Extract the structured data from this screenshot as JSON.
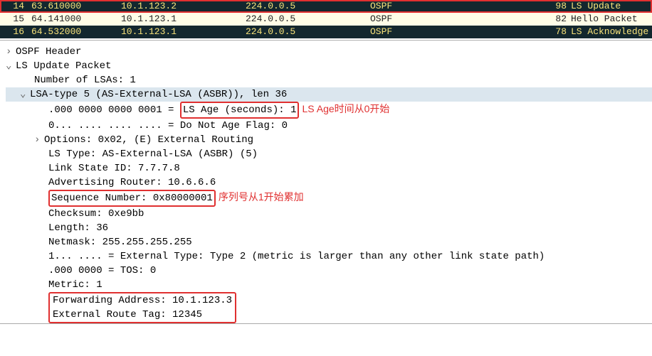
{
  "colors": {
    "highlight": "#e03030",
    "dark_bg": "#13272e",
    "dark_fg": "#f7e27a",
    "light_bg": "#fffde7"
  },
  "packet_list": {
    "rows": [
      {
        "no": "14",
        "time": "63.610000",
        "src": "10.1.123.2",
        "dst": "224.0.0.5",
        "proto": "OSPF",
        "len": "98",
        "info": "LS Update",
        "style": "dark",
        "hl": true
      },
      {
        "no": "15",
        "time": "64.141000",
        "src": "10.1.123.1",
        "dst": "224.0.0.5",
        "proto": "OSPF",
        "len": "82",
        "info": "Hello Packet",
        "style": "light",
        "hl": false
      },
      {
        "no": "16",
        "time": "64.532000",
        "src": "10.1.123.1",
        "dst": "224.0.0.5",
        "proto": "OSPF",
        "len": "78",
        "info": "LS Acknowledge",
        "style": "dark",
        "hl": false
      }
    ]
  },
  "details": {
    "ospf_header": "OSPF Header",
    "ls_update": "LS Update Packet",
    "num_lsas": "Number of LSAs: 1",
    "lsa_header": "LSA-type 5 (AS-External-LSA (ASBR)), len 36",
    "ls_age_prefix": ".000 0000 0000 0001 = ",
    "ls_age_box": "LS Age (seconds): 1",
    "ls_age_anno": "LS Age时间从0开始",
    "do_not_age": "0... .... .... .... = Do Not Age Flag: 0",
    "options": "Options: 0x02, (E) External Routing",
    "ls_type": "LS Type: AS-External-LSA (ASBR) (5)",
    "link_state_id": "Link State ID: 7.7.7.8",
    "adv_router": "Advertising Router: 10.6.6.6",
    "seq_box": "Sequence Number: 0x80000001",
    "seq_anno": "序列号从1开始累加",
    "checksum": "Checksum: 0xe9bb",
    "length_line": "Length: 36",
    "netmask": "Netmask: 255.255.255.255",
    "ext_type": "1... .... = External Type: Type 2 (metric is larger than any other link state path)",
    "tos": ".000 0000 = TOS: 0",
    "metric": "Metric: 1",
    "fwd_addr": "Forwarding Address: 10.1.123.3",
    "ext_tag": "External Route Tag: 12345"
  }
}
